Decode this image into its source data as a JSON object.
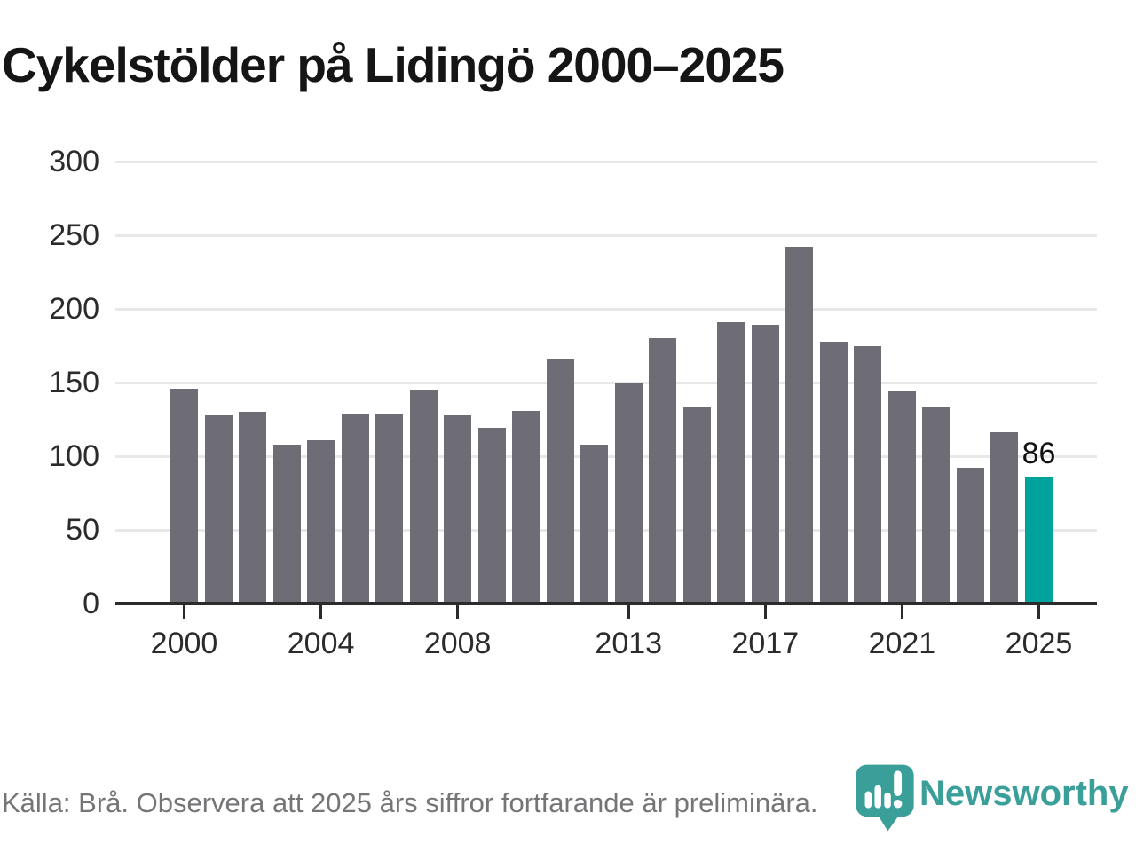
{
  "title": "Cykelstölder på Lidingö 2000–2025",
  "footer": {
    "source_text": "Källa: Brå. Observera att 2025 års siffror fortfarande är preliminära."
  },
  "logo": {
    "brand": "Newsworthy",
    "icon": "newsworthy-pin-barchart-icon",
    "color": "#3a9e99"
  },
  "colors": {
    "bar": "#6e6d76",
    "highlight": "#00a39b",
    "grid": "#e8e8e8",
    "axis": "#2b2b2b",
    "text": "#2b2b2b",
    "muted": "#757578"
  },
  "chart_data": {
    "type": "bar",
    "title": "Cykelstölder på Lidingö 2000–2025",
    "xlabel": "",
    "ylabel": "",
    "x": [
      2000,
      2001,
      2002,
      2003,
      2004,
      2005,
      2006,
      2007,
      2008,
      2009,
      2010,
      2011,
      2012,
      2013,
      2014,
      2015,
      2016,
      2017,
      2018,
      2019,
      2020,
      2021,
      2022,
      2023,
      2024,
      2025
    ],
    "values": [
      146,
      128,
      130,
      108,
      111,
      129,
      129,
      145,
      128,
      119,
      131,
      166,
      108,
      150,
      180,
      133,
      191,
      189,
      242,
      178,
      175,
      144,
      133,
      92,
      116,
      86
    ],
    "ylim": [
      0,
      300
    ],
    "yticks": [
      0,
      50,
      100,
      150,
      200,
      250,
      300
    ],
    "xticks": [
      2000,
      2004,
      2008,
      2013,
      2017,
      2021,
      2025
    ],
    "grid": "horizontal",
    "legend": "none",
    "bar_color": "#6e6d76",
    "highlight_year": 2025,
    "highlight_color": "#00a39b",
    "annotations": [
      {
        "year": 2025,
        "label": "86"
      }
    ]
  }
}
